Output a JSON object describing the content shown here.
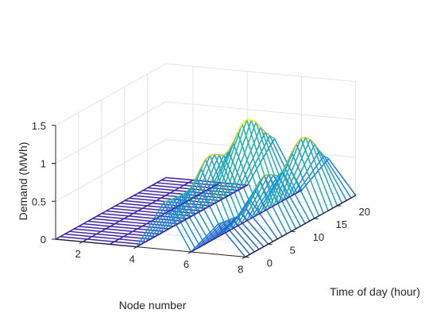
{
  "chart_data": {
    "type": "mesh3d",
    "title": "",
    "xlabel": "Node number",
    "ylabel": "Time of day (hour)",
    "zlabel": "Demand (MWh)",
    "xlim": [
      1,
      8
    ],
    "ylim": [
      0,
      24
    ],
    "zlim": [
      0,
      1.5
    ],
    "x_ticks": [
      "2",
      "4",
      "6",
      "8"
    ],
    "y_ticks": [
      "0",
      "5",
      "10",
      "15",
      "20"
    ],
    "z_ticks": [
      "0",
      "0.5",
      "1",
      "1.5"
    ],
    "grid": true,
    "colormap": "parula",
    "nodes": [
      1,
      2,
      3,
      4,
      5,
      6,
      7,
      8
    ],
    "hours": [
      0,
      1,
      2,
      3,
      4,
      5,
      6,
      7,
      8,
      9,
      10,
      11,
      12,
      13,
      14,
      15,
      16,
      17,
      18,
      19,
      20,
      21,
      22,
      23,
      24
    ],
    "series": [
      {
        "node": 1,
        "values": [
          0,
          0,
          0,
          0,
          0,
          0,
          0,
          0,
          0,
          0,
          0,
          0,
          0,
          0,
          0,
          0,
          0,
          0,
          0,
          0,
          0,
          0,
          0,
          0,
          0
        ]
      },
      {
        "node": 2,
        "values": [
          0,
          0,
          0,
          0,
          0,
          0,
          0,
          0,
          0,
          0,
          0,
          0,
          0,
          0,
          0,
          0,
          0,
          0,
          0,
          0,
          0,
          0,
          0,
          0,
          0
        ]
      },
      {
        "node": 3,
        "values": [
          0,
          0,
          0,
          0,
          0,
          0,
          0,
          0,
          0,
          0,
          0,
          0,
          0,
          0,
          0,
          0,
          0,
          0,
          0,
          0,
          0,
          0,
          0,
          0,
          0
        ]
      },
      {
        "node": 4,
        "values": [
          0,
          0,
          0,
          0,
          0,
          0,
          0,
          0,
          0,
          0,
          0,
          0,
          0,
          0,
          0,
          0,
          0,
          0,
          0,
          0,
          0,
          0,
          0,
          0,
          0
        ]
      },
      {
        "node": 5,
        "values": [
          0.62,
          0.61,
          0.6,
          0.59,
          0.58,
          0.59,
          0.62,
          0.7,
          0.8,
          0.88,
          0.9,
          0.88,
          0.84,
          0.8,
          0.82,
          0.9,
          1.0,
          1.08,
          1.1,
          1.06,
          1.0,
          0.9,
          0.8,
          0.72,
          0.65
        ]
      },
      {
        "node": 6,
        "values": [
          0,
          0,
          0,
          0,
          0,
          0,
          0,
          0,
          0,
          0,
          0,
          0,
          0,
          0,
          0,
          0,
          0,
          0,
          0,
          0,
          0,
          0,
          0,
          0,
          0
        ]
      },
      {
        "node": 7,
        "values": [
          0.4,
          0.39,
          0.38,
          0.37,
          0.36,
          0.37,
          0.4,
          0.48,
          0.58,
          0.66,
          0.7,
          0.68,
          0.64,
          0.6,
          0.62,
          0.7,
          0.8,
          0.88,
          0.92,
          0.9,
          0.84,
          0.74,
          0.62,
          0.52,
          0.45
        ]
      },
      {
        "node": 8,
        "values": [
          0,
          0,
          0,
          0,
          0,
          0,
          0,
          0,
          0,
          0,
          0,
          0,
          0,
          0,
          0,
          0,
          0,
          0,
          0,
          0,
          0,
          0,
          0,
          0,
          0
        ]
      }
    ]
  }
}
